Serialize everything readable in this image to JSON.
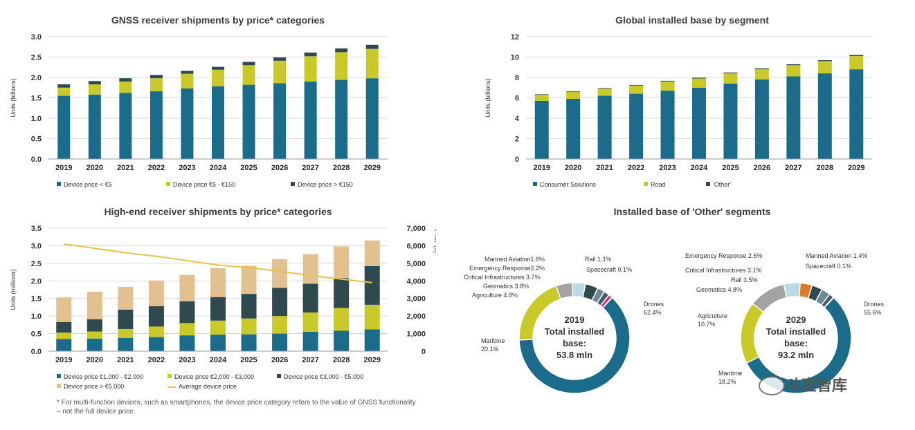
{
  "chart_data": [
    {
      "id": "c1",
      "type": "bar",
      "stacked": true,
      "title": "GNSS receiver shipments by price* categories",
      "ylabel": "Units (billions)",
      "xlabel": "",
      "ylim": [
        0,
        3.0
      ],
      "yticks": [
        "0.0",
        "0.5",
        "1.0",
        "1.5",
        "2.0",
        "2.5",
        "3.0"
      ],
      "categories": [
        "2019",
        "2020",
        "2021",
        "2022",
        "2023",
        "2024",
        "2025",
        "2026",
        "2027",
        "2028",
        "2029"
      ],
      "series": [
        {
          "name": "Device price < €5",
          "color": "#1b6b8a",
          "values": [
            1.55,
            1.58,
            1.62,
            1.66,
            1.73,
            1.78,
            1.82,
            1.86,
            1.9,
            1.94,
            1.98
          ]
        },
        {
          "name": "Device price €5 - €150",
          "color": "#c9c92a",
          "values": [
            0.2,
            0.25,
            0.28,
            0.32,
            0.36,
            0.41,
            0.48,
            0.55,
            0.62,
            0.68,
            0.72
          ]
        },
        {
          "name": "Device price > €150",
          "color": "#2e4a4e",
          "values": [
            0.08,
            0.08,
            0.08,
            0.08,
            0.07,
            0.07,
            0.08,
            0.08,
            0.09,
            0.09,
            0.1
          ]
        }
      ],
      "legend": "bottom",
      "grid": true
    },
    {
      "id": "c2",
      "type": "bar",
      "stacked": true,
      "title": "Global installed base by segment",
      "ylabel": "Units (billions)",
      "xlabel": "",
      "ylim": [
        0,
        12
      ],
      "yticks": [
        "0",
        "2",
        "4",
        "6",
        "8",
        "10",
        "12"
      ],
      "categories": [
        "2019",
        "2020",
        "2021",
        "2022",
        "2023",
        "2024",
        "2025",
        "2026",
        "2027",
        "2028",
        "2029"
      ],
      "series": [
        {
          "name": "Consumer Solutions",
          "color": "#1b6b8a",
          "values": [
            5.7,
            5.9,
            6.2,
            6.4,
            6.7,
            7.0,
            7.4,
            7.8,
            8.1,
            8.4,
            8.8
          ]
        },
        {
          "name": "Road",
          "color": "#c9c92a",
          "values": [
            0.6,
            0.7,
            0.7,
            0.8,
            0.9,
            0.9,
            1.0,
            1.0,
            1.1,
            1.2,
            1.3
          ]
        },
        {
          "name": "'Other'",
          "color": "#2e4a4e",
          "values": [
            0.05,
            0.05,
            0.06,
            0.06,
            0.07,
            0.07,
            0.08,
            0.08,
            0.09,
            0.09,
            0.1
          ]
        }
      ],
      "legend": "bottom",
      "grid": true
    },
    {
      "id": "c3",
      "type": "bar",
      "stacked": true,
      "title": "High-end receiver shipments by price* categories",
      "ylabel": "Units (millions)",
      "y2label": "Price (€)",
      "xlabel": "",
      "ylim": [
        0,
        3.5
      ],
      "y2lim": [
        0,
        7000
      ],
      "yticks": [
        "0.0",
        "0.5",
        "1.0",
        "1.5",
        "2.0",
        "2.5",
        "3.0",
        "3.5"
      ],
      "y2ticks": [
        "0",
        "1,000",
        "2,000",
        "3,000",
        "4,000",
        "5,000",
        "6,000",
        "7,000"
      ],
      "categories": [
        "2019",
        "2020",
        "2021",
        "2022",
        "2023",
        "2024",
        "2025",
        "2026",
        "2027",
        "2028",
        "2029"
      ],
      "series": [
        {
          "name": "Device price €1,000 - €2,000",
          "color": "#1b6b8a",
          "values": [
            0.35,
            0.36,
            0.38,
            0.4,
            0.45,
            0.47,
            0.48,
            0.5,
            0.55,
            0.58,
            0.62
          ]
        },
        {
          "name": "Device price €2,000 - €3,000",
          "color": "#c9c92a",
          "values": [
            0.18,
            0.2,
            0.25,
            0.3,
            0.35,
            0.4,
            0.45,
            0.5,
            0.55,
            0.65,
            0.7
          ]
        },
        {
          "name": "Device price €3,000 - €5,000",
          "color": "#2e4a4e",
          "values": [
            0.3,
            0.35,
            0.55,
            0.58,
            0.62,
            0.67,
            0.7,
            0.8,
            0.82,
            0.85,
            1.1
          ]
        },
        {
          "name": "Device price > €5,000",
          "color": "#e2c08f",
          "values": [
            0.7,
            0.78,
            0.65,
            0.73,
            0.75,
            0.82,
            0.8,
            0.82,
            0.84,
            0.9,
            0.73
          ]
        }
      ],
      "line_series": {
        "name": "Average device price",
        "color": "#e8c24a",
        "values": [
          6100,
          5850,
          5600,
          5400,
          5150,
          4900,
          4750,
          4550,
          4300,
          4100,
          3900
        ]
      },
      "legend": "bottom",
      "grid": true,
      "footnote": "* For multi-function devices, such as smartphones, the device price category refers to the value of GNSS functionality – not the full device price."
    },
    {
      "id": "c4",
      "type": "pie",
      "title": "Installed base of 'Other' segments",
      "charts": [
        {
          "center_lines": [
            "2019",
            "Total installed",
            "base:",
            "53.8 mln"
          ],
          "slices": [
            {
              "label": "Drones",
              "value": 62.4,
              "text": "Drones\n62.4%",
              "color": "#1b6b8a"
            },
            {
              "label": "Maritime",
              "value": 20.1,
              "text": "Maritime\n20.1%",
              "color": "#c9c92a"
            },
            {
              "label": "Agriculture",
              "value": 4.8,
              "text": "Agriculture 4.8%",
              "color": "#a3a3a3"
            },
            {
              "label": "Geomatics",
              "value": 3.8,
              "text": "Geomatics 3.8%",
              "color": "#b9dbe8"
            },
            {
              "label": "Critical Infrastructures",
              "value": 3.7,
              "text": "Critical Infrastructures 3.7%",
              "color": "#2e4a4e"
            },
            {
              "label": "Emergency Response",
              "value": 2.2,
              "text": "Emergency Response2.2%",
              "color": "#6d8a9a"
            },
            {
              "label": "Manned Aviation",
              "value": 1.6,
              "text": "Manned Aviation1.6%",
              "color": "#4a5a6a"
            },
            {
              "label": "Rail",
              "value": 1.1,
              "text": "Rail 1.1%",
              "color": "#d2327a"
            },
            {
              "label": "Spacecraft",
              "value": 0.1,
              "text": "Spacecraft 0.1%",
              "color": "#333333"
            }
          ]
        },
        {
          "center_lines": [
            "2029",
            "Total installed",
            "base:",
            "93.2 mln"
          ],
          "slices": [
            {
              "label": "Drones",
              "value": 55.6,
              "text": "Drones\n55.6%",
              "color": "#1b6b8a"
            },
            {
              "label": "Maritime",
              "value": 18.2,
              "text": "Maritime\n18.2%",
              "color": "#c9c92a"
            },
            {
              "label": "Agriculture",
              "value": 10.7,
              "text": "Agriculture\n10.7%",
              "color": "#a3a3a3"
            },
            {
              "label": "Geomatics",
              "value": 4.8,
              "text": "Geomatics 4.8%",
              "color": "#b9dbe8"
            },
            {
              "label": "Rail",
              "value": 3.5,
              "text": "Rail 3.5%",
              "color": "#e07a2a"
            },
            {
              "label": "Critical Infrastructures",
              "value": 3.1,
              "text": "Critical Infrastructures 3.1%",
              "color": "#2e4a4e"
            },
            {
              "label": "Emergency Response",
              "value": 2.6,
              "text": "Emergency Response 2.6%",
              "color": "#6d8a9a"
            },
            {
              "label": "Manned Aviation",
              "value": 1.4,
              "text": "Manned Aviation 1.4%",
              "color": "#4a5a6a"
            },
            {
              "label": "Spacecraft",
              "value": 0.1,
              "text": "Spacecraft 0.1%",
              "color": "#d2327a"
            }
          ]
        }
      ]
    }
  ],
  "watermark": "斗室智库"
}
